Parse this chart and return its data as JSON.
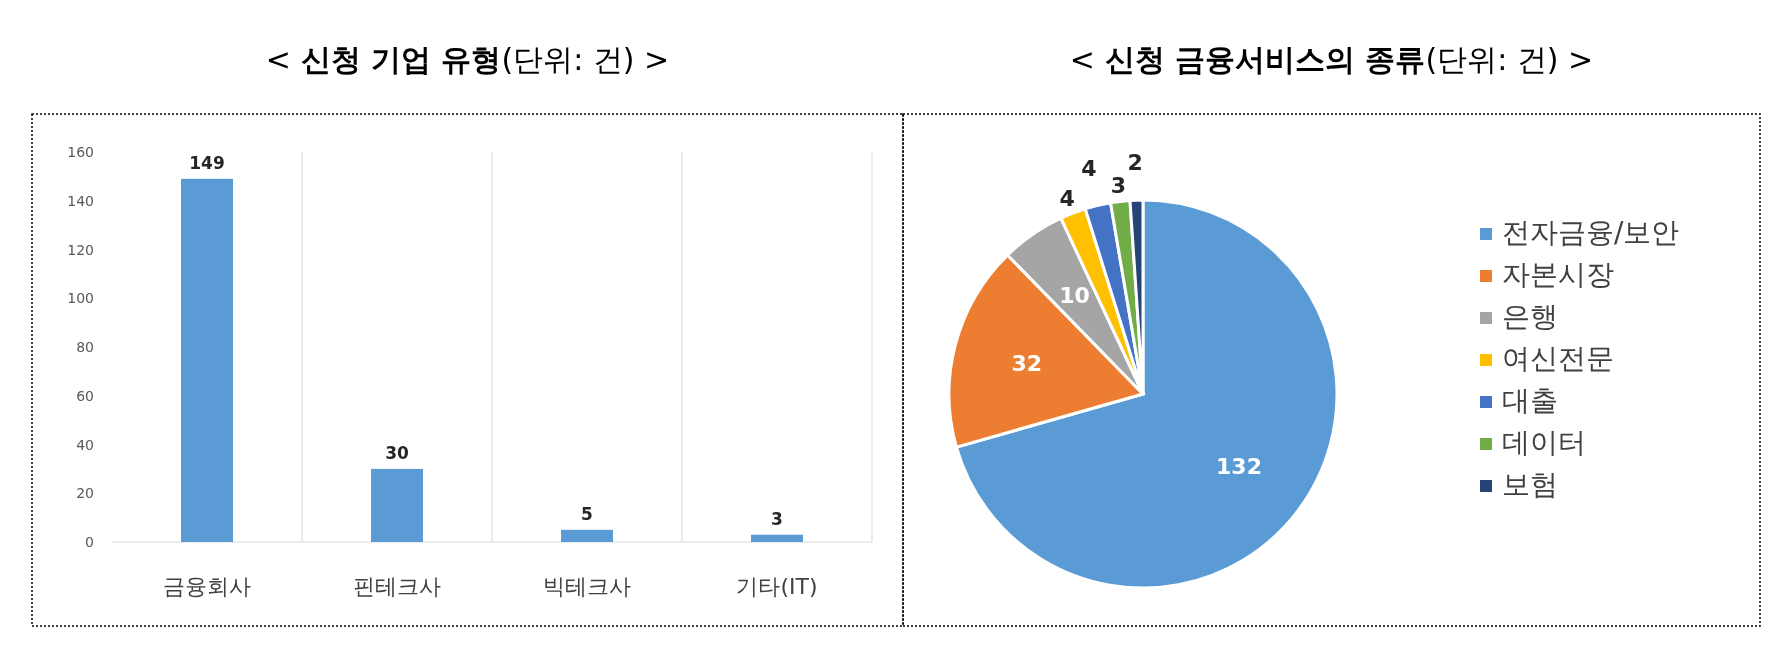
{
  "chart_data": [
    {
      "type": "bar",
      "title": "< **신청 기업 유형**(단위: 건) >",
      "categories": [
        "금융회사",
        "핀테크사",
        "빅테크사",
        "기타(IT)"
      ],
      "values": [
        149,
        30,
        5,
        3
      ],
      "color": "#5b9bd5",
      "ylim": [
        0,
        160
      ],
      "yticks": [
        0,
        20,
        40,
        60,
        80,
        100,
        120,
        140,
        160
      ],
      "grid": "x",
      "data_labels": true
    },
    {
      "type": "pie",
      "title": "< **신청 금융서비스의 종류**(단위: 건) >",
      "categories": [
        "전자금융/보안",
        "자본시장",
        "은행",
        "여신전문",
        "대출",
        "데이터",
        "보험"
      ],
      "values": [
        132,
        32,
        10,
        4,
        4,
        3,
        2
      ],
      "colors": [
        "#5b9bd5",
        "#ed7d31",
        "#a5a5a5",
        "#ffc000",
        "#4472c4",
        "#70ad47",
        "#264478"
      ],
      "data_labels": true,
      "legend": "right"
    }
  ]
}
